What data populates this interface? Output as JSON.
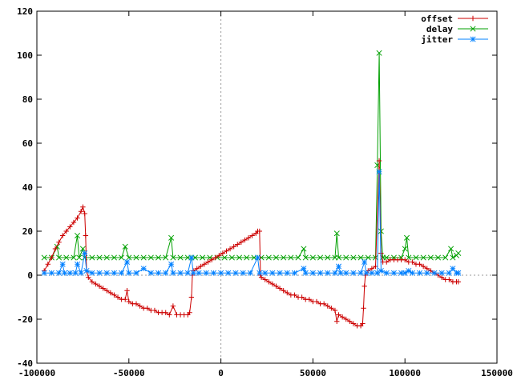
{
  "chart_data": {
    "type": "line",
    "title": "",
    "xlabel": "",
    "ylabel": "",
    "xlim": [
      -100000,
      150000
    ],
    "ylim": [
      -40,
      120
    ],
    "x_ticks": [
      -100000,
      -50000,
      0,
      50000,
      100000,
      150000
    ],
    "y_ticks": [
      -40,
      -20,
      0,
      20,
      40,
      60,
      80,
      100,
      120
    ],
    "x_tick_labels": [
      "-100000",
      "-50000",
      "0",
      "50000",
      "100000",
      "150000"
    ],
    "y_tick_labels": [
      "-40",
      "-20",
      "0",
      "20",
      "40",
      "60",
      "80",
      "100",
      "120"
    ],
    "zero_axes": true,
    "grid": false,
    "legend_position": "top-right",
    "series": [
      {
        "name": "offset",
        "color": "#cc0000",
        "marker": "plus",
        "points": [
          [
            -96000,
            2
          ],
          [
            -94000,
            5
          ],
          [
            -92000,
            8
          ],
          [
            -90000,
            12
          ],
          [
            -88000,
            15
          ],
          [
            -86000,
            18
          ],
          [
            -84000,
            20
          ],
          [
            -82000,
            22
          ],
          [
            -80000,
            24
          ],
          [
            -78000,
            26
          ],
          [
            -76000,
            29
          ],
          [
            -75000,
            31
          ],
          [
            -74000,
            28
          ],
          [
            -73500,
            18
          ],
          [
            -73000,
            2
          ],
          [
            -72000,
            -1
          ],
          [
            -70000,
            -3
          ],
          [
            -68000,
            -4
          ],
          [
            -66000,
            -5
          ],
          [
            -64000,
            -6
          ],
          [
            -62000,
            -7
          ],
          [
            -60000,
            -8
          ],
          [
            -58000,
            -9
          ],
          [
            -56000,
            -10
          ],
          [
            -54000,
            -11
          ],
          [
            -52000,
            -11
          ],
          [
            -51000,
            -7
          ],
          [
            -50000,
            -12
          ],
          [
            -48000,
            -13
          ],
          [
            -46000,
            -13
          ],
          [
            -44000,
            -14
          ],
          [
            -42000,
            -15
          ],
          [
            -40000,
            -15
          ],
          [
            -38000,
            -16
          ],
          [
            -36000,
            -16
          ],
          [
            -34000,
            -17
          ],
          [
            -32000,
            -17
          ],
          [
            -30000,
            -17
          ],
          [
            -28000,
            -18
          ],
          [
            -26000,
            -14
          ],
          [
            -24000,
            -18
          ],
          [
            -22000,
            -18
          ],
          [
            -20000,
            -18
          ],
          [
            -18000,
            -18
          ],
          [
            -17000,
            -17
          ],
          [
            -16000,
            -10
          ],
          [
            -15500,
            0
          ],
          [
            -15000,
            2
          ],
          [
            -13000,
            3
          ],
          [
            -11000,
            4
          ],
          [
            -9000,
            5
          ],
          [
            -7000,
            6
          ],
          [
            -5000,
            7
          ],
          [
            -3000,
            8
          ],
          [
            -1000,
            9
          ],
          [
            1000,
            10
          ],
          [
            3000,
            11
          ],
          [
            5000,
            12
          ],
          [
            7000,
            13
          ],
          [
            9000,
            14
          ],
          [
            11000,
            15
          ],
          [
            13000,
            16
          ],
          [
            15000,
            17
          ],
          [
            17000,
            18
          ],
          [
            19000,
            19
          ],
          [
            20000,
            20
          ],
          [
            21000,
            20
          ],
          [
            21500,
            0
          ],
          [
            22000,
            -1
          ],
          [
            24000,
            -2
          ],
          [
            26000,
            -3
          ],
          [
            28000,
            -4
          ],
          [
            30000,
            -5
          ],
          [
            32000,
            -6
          ],
          [
            34000,
            -7
          ],
          [
            36000,
            -8
          ],
          [
            38000,
            -9
          ],
          [
            40000,
            -9
          ],
          [
            42000,
            -10
          ],
          [
            44000,
            -10
          ],
          [
            46000,
            -11
          ],
          [
            48000,
            -11
          ],
          [
            50000,
            -12
          ],
          [
            52000,
            -12
          ],
          [
            54000,
            -13
          ],
          [
            56000,
            -13
          ],
          [
            58000,
            -14
          ],
          [
            60000,
            -15
          ],
          [
            62000,
            -16
          ],
          [
            63000,
            -21
          ],
          [
            64000,
            -18
          ],
          [
            66000,
            -19
          ],
          [
            68000,
            -20
          ],
          [
            70000,
            -21
          ],
          [
            72000,
            -22
          ],
          [
            74000,
            -23
          ],
          [
            76000,
            -23
          ],
          [
            77000,
            -22
          ],
          [
            77500,
            -15
          ],
          [
            78000,
            -5
          ],
          [
            78500,
            0
          ],
          [
            80000,
            2
          ],
          [
            82000,
            3
          ],
          [
            84000,
            4
          ],
          [
            86000,
            52
          ],
          [
            87000,
            10
          ],
          [
            88000,
            6
          ],
          [
            90000,
            6
          ],
          [
            92000,
            7
          ],
          [
            94000,
            7
          ],
          [
            96000,
            7
          ],
          [
            98000,
            7
          ],
          [
            100000,
            7
          ],
          [
            102000,
            6
          ],
          [
            104000,
            6
          ],
          [
            106000,
            5
          ],
          [
            108000,
            5
          ],
          [
            110000,
            4
          ],
          [
            112000,
            3
          ],
          [
            114000,
            2
          ],
          [
            116000,
            1
          ],
          [
            118000,
            0
          ],
          [
            120000,
            -1
          ],
          [
            122000,
            -2
          ],
          [
            124000,
            -2
          ],
          [
            126000,
            -3
          ],
          [
            128000,
            -3
          ],
          [
            129000,
            -3
          ]
        ]
      },
      {
        "name": "delay",
        "color": "#00a000",
        "marker": "cross",
        "points": [
          [
            -96000,
            8
          ],
          [
            -92000,
            8
          ],
          [
            -89000,
            13
          ],
          [
            -88000,
            8
          ],
          [
            -84000,
            8
          ],
          [
            -80000,
            8
          ],
          [
            -78000,
            18
          ],
          [
            -77000,
            8
          ],
          [
            -75000,
            12
          ],
          [
            -74000,
            8
          ],
          [
            -70000,
            8
          ],
          [
            -66000,
            8
          ],
          [
            -62000,
            8
          ],
          [
            -58000,
            8
          ],
          [
            -54000,
            8
          ],
          [
            -52000,
            13
          ],
          [
            -50000,
            8
          ],
          [
            -46000,
            8
          ],
          [
            -42000,
            8
          ],
          [
            -38000,
            8
          ],
          [
            -34000,
            8
          ],
          [
            -30000,
            8
          ],
          [
            -27000,
            17
          ],
          [
            -26000,
            8
          ],
          [
            -22000,
            8
          ],
          [
            -18000,
            8
          ],
          [
            -16000,
            8
          ],
          [
            -14000,
            8
          ],
          [
            -10000,
            8
          ],
          [
            -6000,
            8
          ],
          [
            -2000,
            8
          ],
          [
            2000,
            8
          ],
          [
            6000,
            8
          ],
          [
            10000,
            8
          ],
          [
            14000,
            8
          ],
          [
            18000,
            8
          ],
          [
            22000,
            8
          ],
          [
            26000,
            8
          ],
          [
            30000,
            8
          ],
          [
            34000,
            8
          ],
          [
            38000,
            8
          ],
          [
            42000,
            8
          ],
          [
            45000,
            12
          ],
          [
            46000,
            8
          ],
          [
            50000,
            8
          ],
          [
            54000,
            8
          ],
          [
            58000,
            8
          ],
          [
            62000,
            8
          ],
          [
            63000,
            19
          ],
          [
            64000,
            8
          ],
          [
            68000,
            8
          ],
          [
            72000,
            8
          ],
          [
            76000,
            8
          ],
          [
            80000,
            8
          ],
          [
            84000,
            8
          ],
          [
            85000,
            50
          ],
          [
            86000,
            101
          ],
          [
            87000,
            20
          ],
          [
            88000,
            8
          ],
          [
            90000,
            8
          ],
          [
            94000,
            8
          ],
          [
            98000,
            8
          ],
          [
            100000,
            12
          ],
          [
            101000,
            17
          ],
          [
            102000,
            8
          ],
          [
            106000,
            8
          ],
          [
            110000,
            8
          ],
          [
            114000,
            8
          ],
          [
            118000,
            8
          ],
          [
            122000,
            8
          ],
          [
            125000,
            12
          ],
          [
            126000,
            8
          ],
          [
            128000,
            9
          ],
          [
            129000,
            10
          ]
        ]
      },
      {
        "name": "jitter",
        "color": "#0080ff",
        "marker": "star",
        "points": [
          [
            -96000,
            1
          ],
          [
            -92000,
            1
          ],
          [
            -88000,
            1
          ],
          [
            -86000,
            5
          ],
          [
            -85000,
            1
          ],
          [
            -82000,
            1
          ],
          [
            -79000,
            1
          ],
          [
            -78000,
            5
          ],
          [
            -76000,
            1
          ],
          [
            -74000,
            10
          ],
          [
            -73000,
            2
          ],
          [
            -70000,
            1
          ],
          [
            -66000,
            1
          ],
          [
            -62000,
            1
          ],
          [
            -58000,
            1
          ],
          [
            -54000,
            1
          ],
          [
            -51000,
            6
          ],
          [
            -50000,
            1
          ],
          [
            -46000,
            1
          ],
          [
            -42000,
            3
          ],
          [
            -38000,
            1
          ],
          [
            -34000,
            1
          ],
          [
            -30000,
            1
          ],
          [
            -27000,
            5
          ],
          [
            -26000,
            1
          ],
          [
            -22000,
            1
          ],
          [
            -18000,
            1
          ],
          [
            -16000,
            8
          ],
          [
            -15000,
            1
          ],
          [
            -12000,
            1
          ],
          [
            -8000,
            1
          ],
          [
            -4000,
            1
          ],
          [
            0,
            1
          ],
          [
            4000,
            1
          ],
          [
            8000,
            1
          ],
          [
            12000,
            1
          ],
          [
            16000,
            1
          ],
          [
            20000,
            8
          ],
          [
            21000,
            1
          ],
          [
            24000,
            1
          ],
          [
            28000,
            1
          ],
          [
            32000,
            1
          ],
          [
            36000,
            1
          ],
          [
            40000,
            1
          ],
          [
            45000,
            3
          ],
          [
            46000,
            1
          ],
          [
            50000,
            1
          ],
          [
            54000,
            1
          ],
          [
            58000,
            1
          ],
          [
            62000,
            1
          ],
          [
            64000,
            4
          ],
          [
            65000,
            1
          ],
          [
            68000,
            1
          ],
          [
            72000,
            1
          ],
          [
            76000,
            1
          ],
          [
            78000,
            6
          ],
          [
            79000,
            1
          ],
          [
            82000,
            1
          ],
          [
            85000,
            1
          ],
          [
            86000,
            47
          ],
          [
            87000,
            2
          ],
          [
            90000,
            1
          ],
          [
            94000,
            1
          ],
          [
            98000,
            1
          ],
          [
            100000,
            1
          ],
          [
            102000,
            2
          ],
          [
            104000,
            1
          ],
          [
            108000,
            1
          ],
          [
            112000,
            1
          ],
          [
            116000,
            1
          ],
          [
            120000,
            1
          ],
          [
            124000,
            1
          ],
          [
            126000,
            3
          ],
          [
            128000,
            1
          ],
          [
            129000,
            1
          ]
        ]
      }
    ]
  }
}
